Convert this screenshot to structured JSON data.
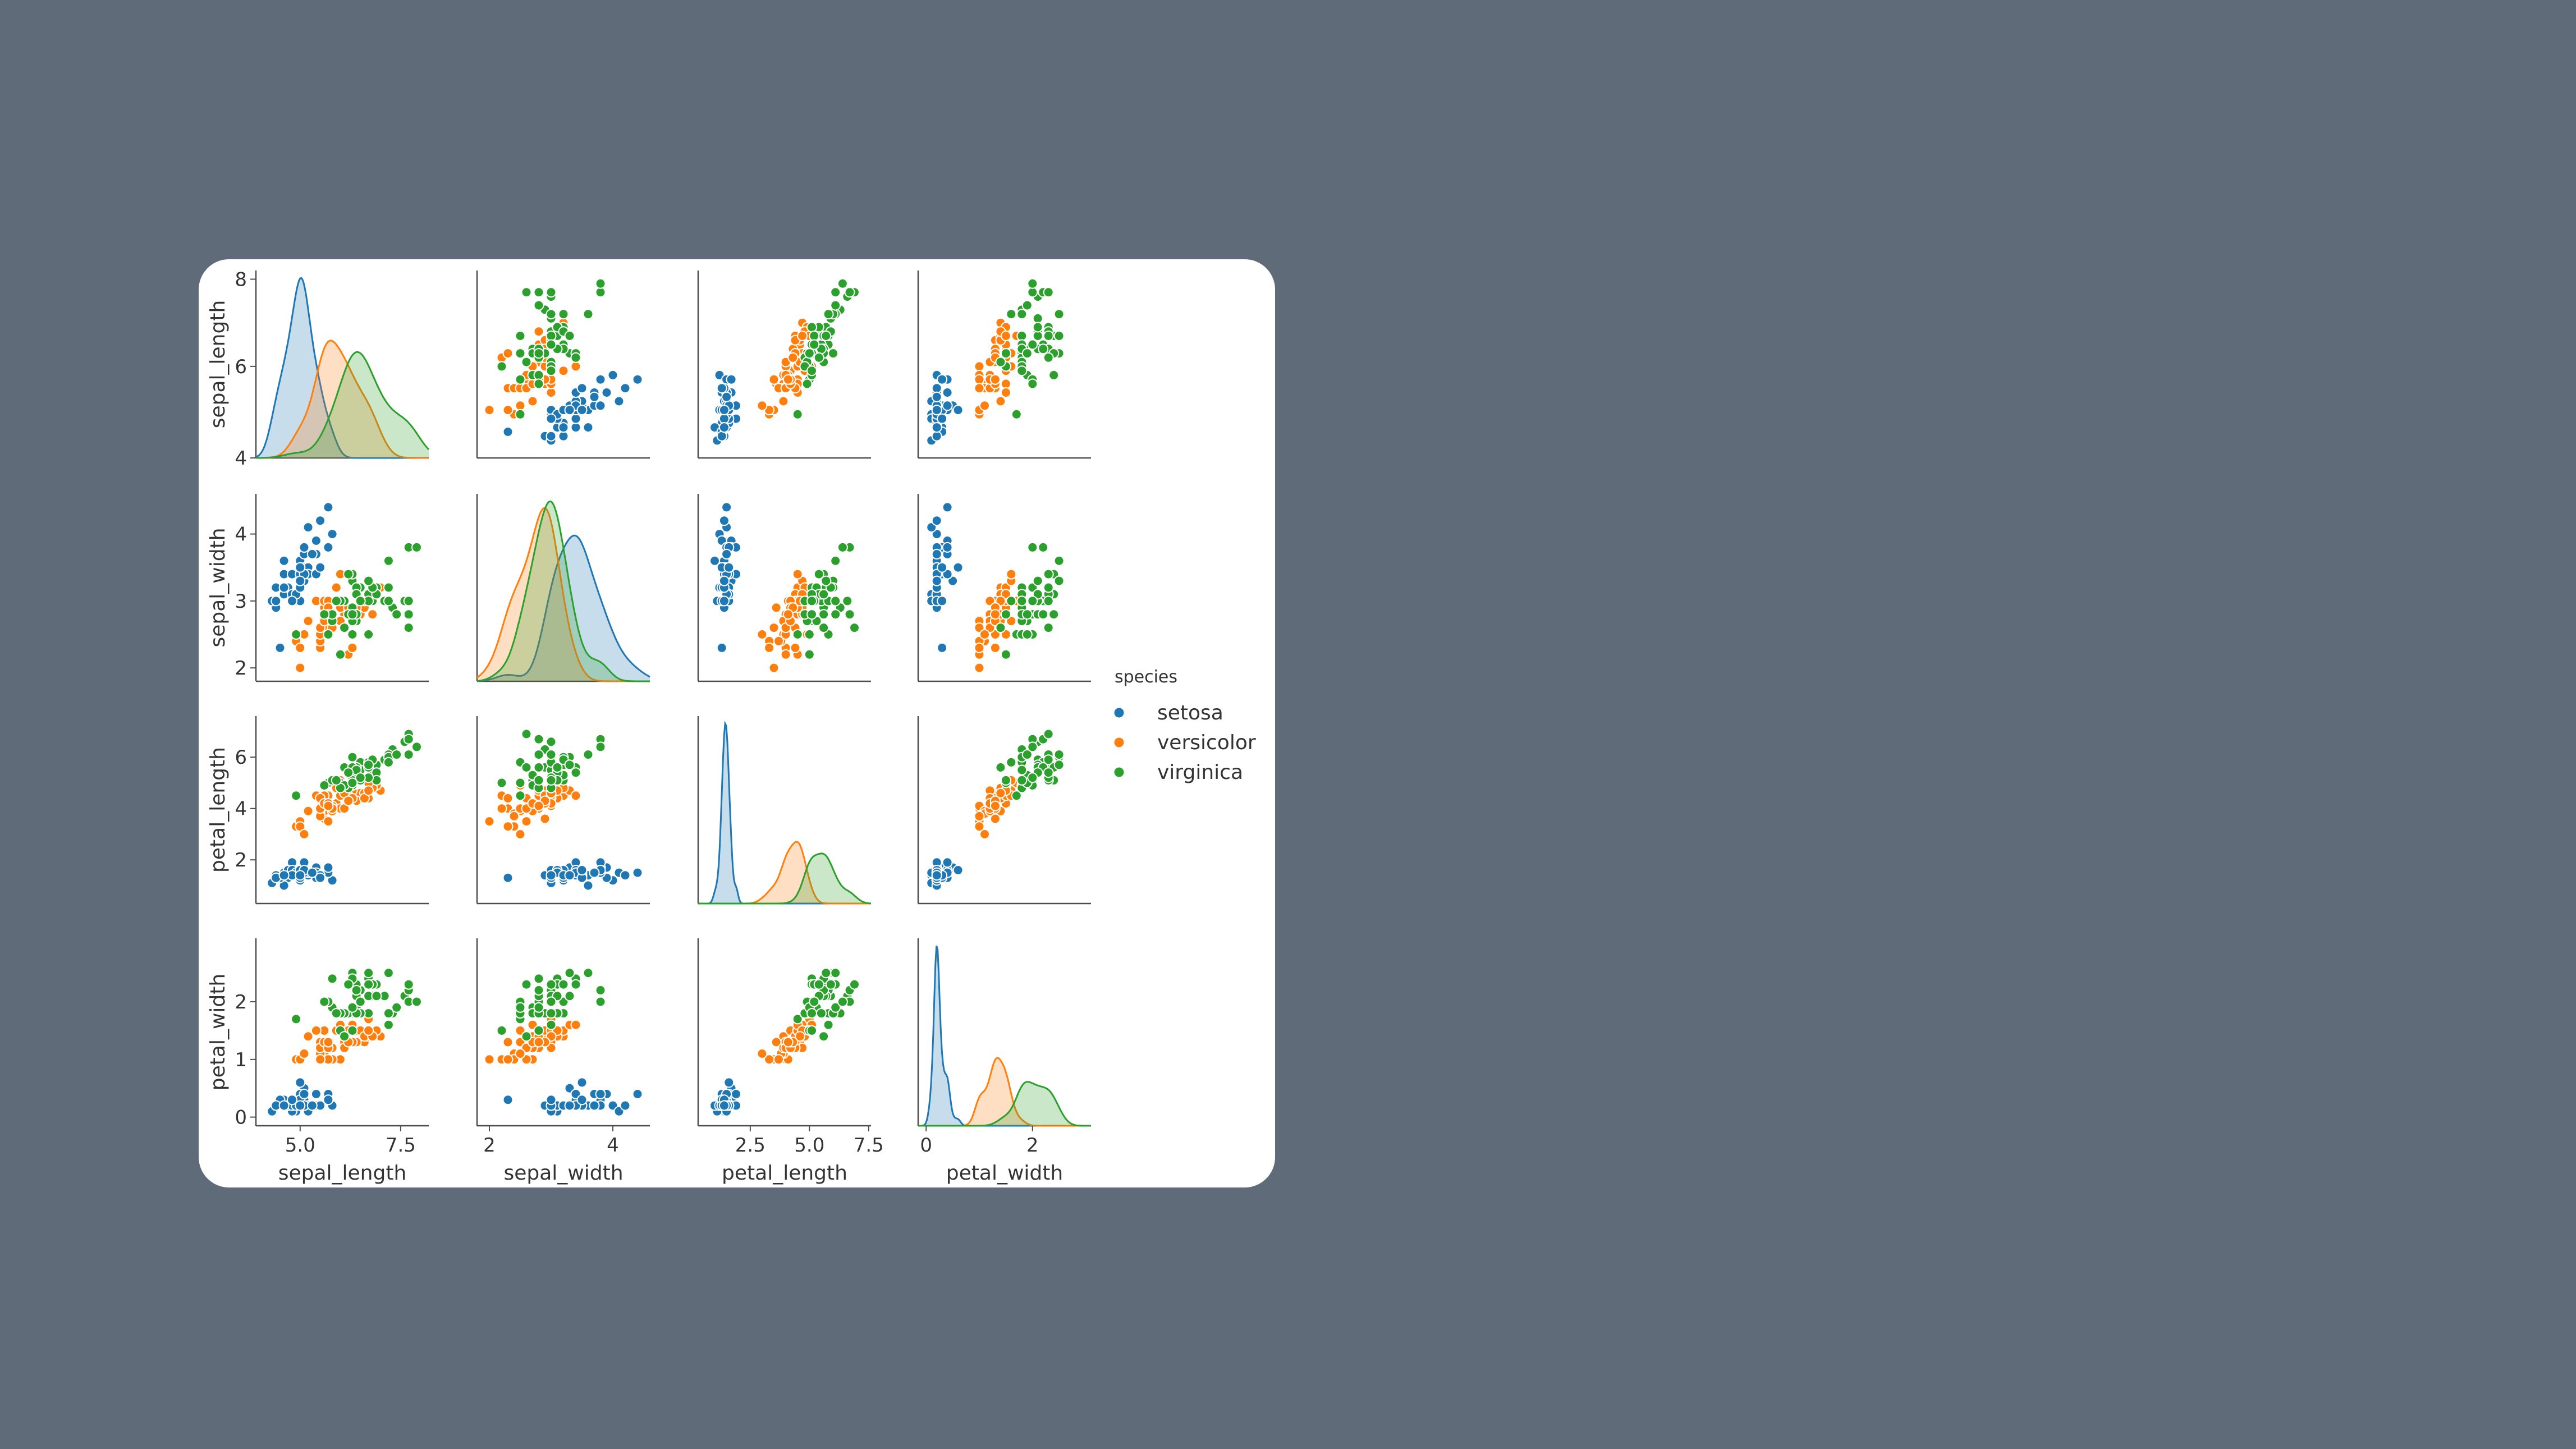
{
  "chart_data": {
    "type": "scatter",
    "kind": "pairplot",
    "variables": [
      "sepal_length",
      "sepal_width",
      "petal_length",
      "petal_width"
    ],
    "diagonal": "kde",
    "grid": false,
    "legend": {
      "title": "species",
      "placement": "right-center",
      "entries": [
        "setosa",
        "versicolor",
        "virginica"
      ]
    },
    "colors": {
      "setosa": "#1f77b4",
      "versicolor": "#ff7f0e",
      "virginica": "#2ca02c"
    },
    "axes": {
      "sepal_length": {
        "lim": [
          3.9,
          8.2
        ],
        "ticks": [
          5.0,
          7.5
        ],
        "tick_labels": [
          "5.0",
          "7.5"
        ],
        "ytick_values": [
          4,
          6,
          8
        ],
        "ytick_labels": [
          "4",
          "6",
          "8"
        ]
      },
      "sepal_width": {
        "lim": [
          1.8,
          4.6
        ],
        "ticks": [
          2,
          4
        ],
        "tick_labels": [
          "2",
          "4"
        ],
        "ytick_values": [
          2,
          3,
          4
        ],
        "ytick_labels": [
          "2",
          "3",
          "4"
        ]
      },
      "petal_length": {
        "lim": [
          0.3,
          7.6
        ],
        "ticks": [
          2.5,
          5.0,
          7.5
        ],
        "tick_labels": [
          "2.5",
          "5.0",
          "7.5"
        ],
        "ytick_values": [
          2,
          4,
          6
        ],
        "ytick_labels": [
          "2",
          "4",
          "6"
        ]
      },
      "petal_width": {
        "lim": [
          -0.15,
          3.1
        ],
        "ticks": [
          0,
          2
        ],
        "tick_labels": [
          "0",
          "2"
        ],
        "ytick_values": [
          0,
          1,
          2
        ],
        "ytick_labels": [
          "0",
          "1",
          "2"
        ]
      }
    },
    "series": [
      {
        "name": "setosa",
        "points": [
          [
            5.1,
            3.5,
            1.4,
            0.2
          ],
          [
            4.9,
            3.0,
            1.4,
            0.2
          ],
          [
            4.7,
            3.2,
            1.3,
            0.2
          ],
          [
            4.6,
            3.1,
            1.5,
            0.2
          ],
          [
            5.0,
            3.6,
            1.4,
            0.2
          ],
          [
            5.4,
            3.9,
            1.7,
            0.4
          ],
          [
            4.6,
            3.4,
            1.4,
            0.3
          ],
          [
            5.0,
            3.4,
            1.5,
            0.2
          ],
          [
            4.4,
            2.9,
            1.4,
            0.2
          ],
          [
            4.9,
            3.1,
            1.5,
            0.1
          ],
          [
            5.4,
            3.7,
            1.5,
            0.2
          ],
          [
            4.8,
            3.4,
            1.6,
            0.2
          ],
          [
            4.8,
            3.0,
            1.4,
            0.1
          ],
          [
            4.3,
            3.0,
            1.1,
            0.1
          ],
          [
            5.8,
            4.0,
            1.2,
            0.2
          ],
          [
            5.7,
            4.4,
            1.5,
            0.4
          ],
          [
            5.4,
            3.9,
            1.3,
            0.4
          ],
          [
            5.1,
            3.5,
            1.4,
            0.3
          ],
          [
            5.7,
            3.8,
            1.7,
            0.3
          ],
          [
            5.1,
            3.8,
            1.5,
            0.3
          ],
          [
            5.4,
            3.4,
            1.7,
            0.2
          ],
          [
            5.1,
            3.7,
            1.5,
            0.4
          ],
          [
            4.6,
            3.6,
            1.0,
            0.2
          ],
          [
            5.1,
            3.3,
            1.7,
            0.5
          ],
          [
            4.8,
            3.4,
            1.9,
            0.2
          ],
          [
            5.0,
            3.0,
            1.6,
            0.2
          ],
          [
            5.0,
            3.4,
            1.6,
            0.4
          ],
          [
            5.2,
            3.5,
            1.5,
            0.2
          ],
          [
            5.2,
            3.4,
            1.4,
            0.2
          ],
          [
            4.7,
            3.2,
            1.6,
            0.2
          ],
          [
            4.8,
            3.1,
            1.6,
            0.2
          ],
          [
            5.4,
            3.4,
            1.5,
            0.4
          ],
          [
            5.2,
            4.1,
            1.5,
            0.1
          ],
          [
            5.5,
            4.2,
            1.4,
            0.2
          ],
          [
            4.9,
            3.1,
            1.5,
            0.2
          ],
          [
            5.0,
            3.2,
            1.2,
            0.2
          ],
          [
            5.5,
            3.5,
            1.3,
            0.2
          ],
          [
            4.4,
            3.0,
            1.3,
            0.2
          ],
          [
            5.1,
            3.4,
            1.5,
            0.2
          ],
          [
            5.0,
            3.5,
            1.3,
            0.3
          ],
          [
            4.5,
            2.3,
            1.3,
            0.3
          ],
          [
            4.4,
            3.2,
            1.3,
            0.2
          ],
          [
            5.0,
            3.5,
            1.6,
            0.6
          ],
          [
            5.1,
            3.8,
            1.9,
            0.4
          ],
          [
            4.8,
            3.0,
            1.4,
            0.3
          ],
          [
            5.1,
            3.8,
            1.6,
            0.2
          ],
          [
            4.6,
            3.2,
            1.4,
            0.2
          ],
          [
            5.3,
            3.7,
            1.5,
            0.2
          ],
          [
            5.0,
            3.3,
            1.4,
            0.2
          ]
        ]
      },
      {
        "name": "versicolor",
        "points": [
          [
            7.0,
            3.2,
            4.7,
            1.4
          ],
          [
            6.4,
            3.2,
            4.5,
            1.5
          ],
          [
            6.9,
            3.1,
            4.9,
            1.5
          ],
          [
            5.5,
            2.3,
            4.0,
            1.3
          ],
          [
            6.5,
            2.8,
            4.6,
            1.5
          ],
          [
            5.7,
            2.8,
            4.5,
            1.3
          ],
          [
            6.3,
            3.3,
            4.7,
            1.6
          ],
          [
            4.9,
            2.4,
            3.3,
            1.0
          ],
          [
            6.6,
            2.9,
            4.6,
            1.3
          ],
          [
            5.2,
            2.7,
            3.9,
            1.4
          ],
          [
            5.0,
            2.0,
            3.5,
            1.0
          ],
          [
            5.9,
            3.0,
            4.2,
            1.5
          ],
          [
            6.0,
            2.2,
            4.0,
            1.0
          ],
          [
            6.1,
            2.9,
            4.7,
            1.4
          ],
          [
            5.6,
            2.9,
            3.6,
            1.3
          ],
          [
            6.7,
            3.1,
            4.4,
            1.4
          ],
          [
            5.6,
            3.0,
            4.5,
            1.5
          ],
          [
            5.8,
            2.7,
            4.1,
            1.0
          ],
          [
            6.2,
            2.2,
            4.5,
            1.5
          ],
          [
            5.6,
            2.5,
            3.9,
            1.1
          ],
          [
            5.9,
            3.2,
            4.8,
            1.8
          ],
          [
            6.1,
            2.8,
            4.0,
            1.3
          ],
          [
            6.3,
            2.5,
            4.9,
            1.5
          ],
          [
            6.1,
            2.8,
            4.7,
            1.2
          ],
          [
            6.4,
            2.9,
            4.3,
            1.3
          ],
          [
            6.6,
            3.0,
            4.4,
            1.4
          ],
          [
            6.8,
            2.8,
            4.8,
            1.4
          ],
          [
            6.7,
            3.0,
            5.0,
            1.7
          ],
          [
            6.0,
            2.9,
            4.5,
            1.5
          ],
          [
            5.7,
            2.6,
            3.5,
            1.0
          ],
          [
            5.5,
            2.4,
            3.8,
            1.1
          ],
          [
            5.5,
            2.4,
            3.7,
            1.0
          ],
          [
            5.8,
            2.7,
            3.9,
            1.2
          ],
          [
            6.0,
            2.7,
            5.1,
            1.6
          ],
          [
            5.4,
            3.0,
            4.5,
            1.5
          ],
          [
            6.0,
            3.4,
            4.5,
            1.6
          ],
          [
            6.7,
            3.1,
            4.7,
            1.5
          ],
          [
            6.3,
            2.3,
            4.4,
            1.3
          ],
          [
            5.6,
            3.0,
            4.1,
            1.3
          ],
          [
            5.5,
            2.5,
            4.0,
            1.3
          ],
          [
            5.5,
            2.6,
            4.4,
            1.2
          ],
          [
            6.1,
            3.0,
            4.6,
            1.4
          ],
          [
            5.8,
            2.6,
            4.0,
            1.2
          ],
          [
            5.0,
            2.3,
            3.3,
            1.0
          ],
          [
            5.6,
            2.7,
            4.2,
            1.3
          ],
          [
            5.7,
            3.0,
            4.2,
            1.2
          ],
          [
            5.7,
            2.9,
            4.2,
            1.3
          ],
          [
            6.2,
            2.9,
            4.3,
            1.3
          ],
          [
            5.1,
            2.5,
            3.0,
            1.1
          ],
          [
            5.7,
            2.8,
            4.1,
            1.3
          ]
        ]
      },
      {
        "name": "virginica",
        "points": [
          [
            6.3,
            3.3,
            6.0,
            2.5
          ],
          [
            5.8,
            2.7,
            5.1,
            1.9
          ],
          [
            7.1,
            3.0,
            5.9,
            2.1
          ],
          [
            6.3,
            2.9,
            5.6,
            1.8
          ],
          [
            6.5,
            3.0,
            5.8,
            2.2
          ],
          [
            7.6,
            3.0,
            6.6,
            2.1
          ],
          [
            4.9,
            2.5,
            4.5,
            1.7
          ],
          [
            7.3,
            2.9,
            6.3,
            1.8
          ],
          [
            6.7,
            2.5,
            5.8,
            1.8
          ],
          [
            7.2,
            3.6,
            6.1,
            2.5
          ],
          [
            6.5,
            3.2,
            5.1,
            2.0
          ],
          [
            6.4,
            2.7,
            5.3,
            1.9
          ],
          [
            6.8,
            3.0,
            5.5,
            2.1
          ],
          [
            5.7,
            2.5,
            5.0,
            2.0
          ],
          [
            5.8,
            2.8,
            5.1,
            2.4
          ],
          [
            6.4,
            3.2,
            5.3,
            2.3
          ],
          [
            6.5,
            3.0,
            5.5,
            1.8
          ],
          [
            7.7,
            3.8,
            6.7,
            2.2
          ],
          [
            7.7,
            2.6,
            6.9,
            2.3
          ],
          [
            6.0,
            2.2,
            5.0,
            1.5
          ],
          [
            6.9,
            3.2,
            5.7,
            2.3
          ],
          [
            5.6,
            2.8,
            4.9,
            2.0
          ],
          [
            7.7,
            2.8,
            6.7,
            2.0
          ],
          [
            6.3,
            2.7,
            4.9,
            1.8
          ],
          [
            6.7,
            3.3,
            5.7,
            2.1
          ],
          [
            7.2,
            3.2,
            6.0,
            1.8
          ],
          [
            6.2,
            2.8,
            4.8,
            1.8
          ],
          [
            6.1,
            3.0,
            4.9,
            1.8
          ],
          [
            6.4,
            2.8,
            5.6,
            2.1
          ],
          [
            7.2,
            3.0,
            5.8,
            1.6
          ],
          [
            7.4,
            2.8,
            6.1,
            1.9
          ],
          [
            7.9,
            3.8,
            6.4,
            2.0
          ],
          [
            6.4,
            2.8,
            5.6,
            2.2
          ],
          [
            6.3,
            2.8,
            5.1,
            1.5
          ],
          [
            6.1,
            2.6,
            5.6,
            1.4
          ],
          [
            7.7,
            3.0,
            6.1,
            2.3
          ],
          [
            6.3,
            3.4,
            5.6,
            2.4
          ],
          [
            6.4,
            3.1,
            5.5,
            1.8
          ],
          [
            6.0,
            3.0,
            4.8,
            1.8
          ],
          [
            6.9,
            3.1,
            5.4,
            2.1
          ],
          [
            6.7,
            3.1,
            5.6,
            2.4
          ],
          [
            6.9,
            3.1,
            5.1,
            2.3
          ],
          [
            6.8,
            3.2,
            5.9,
            2.3
          ],
          [
            6.7,
            3.3,
            5.7,
            2.5
          ],
          [
            6.7,
            3.0,
            5.2,
            2.3
          ],
          [
            6.3,
            2.5,
            5.0,
            1.9
          ],
          [
            6.5,
            3.0,
            5.2,
            2.0
          ],
          [
            6.2,
            3.4,
            5.4,
            2.3
          ],
          [
            5.9,
            3.0,
            5.1,
            1.8
          ]
        ]
      }
    ]
  }
}
